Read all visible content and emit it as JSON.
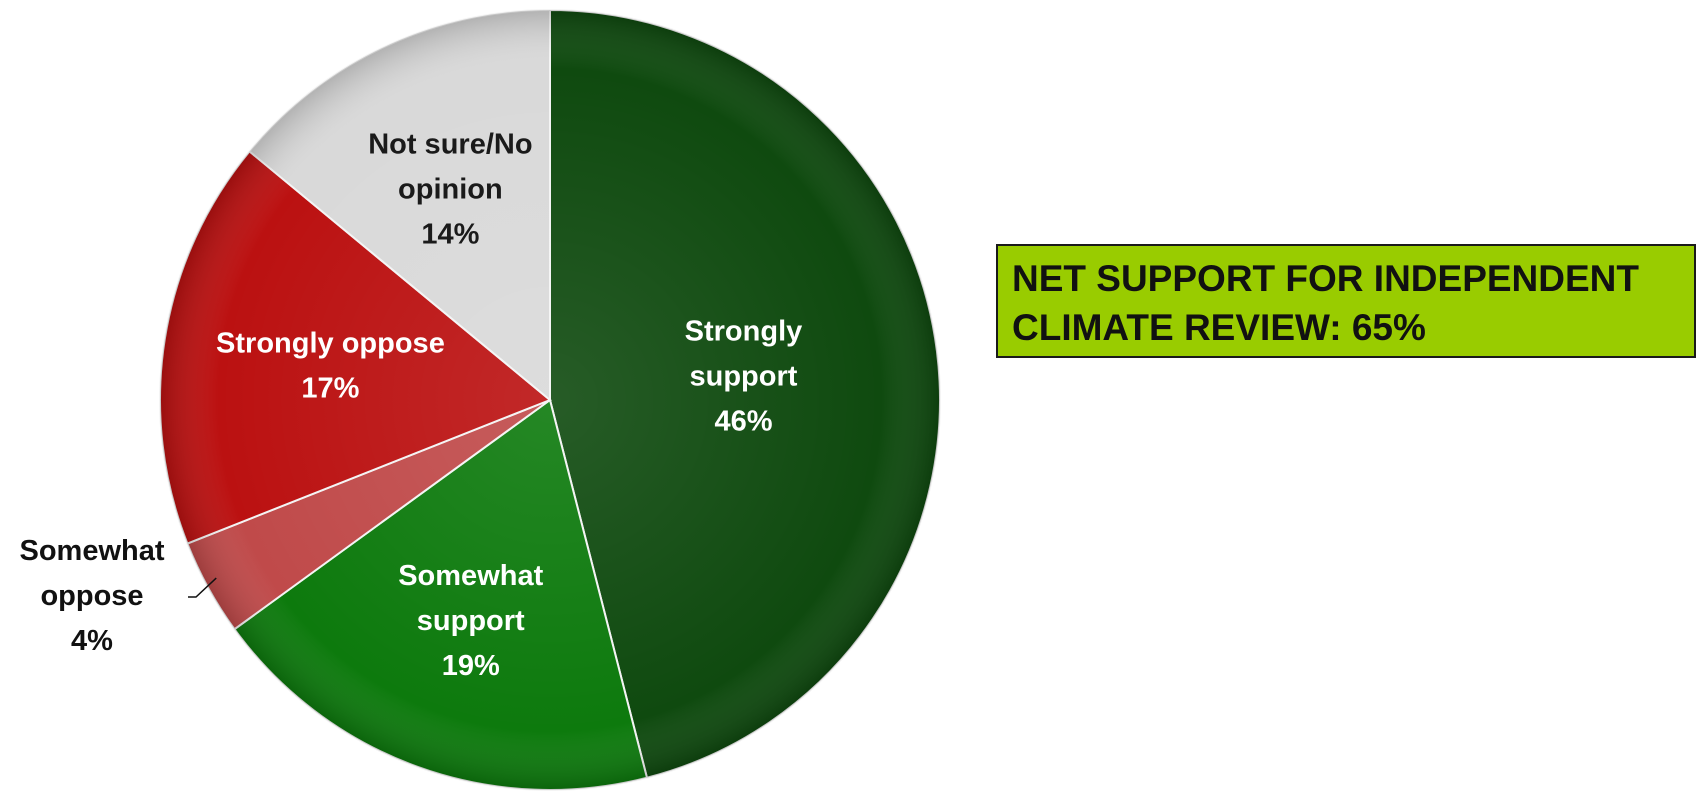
{
  "chart_data": {
    "type": "pie",
    "title": "",
    "slices": [
      {
        "label_lines": [
          "Strongly",
          "support"
        ],
        "value": 46,
        "value_label": "46%",
        "color": "#0f4a0f",
        "text_color": "#ffffff"
      },
      {
        "label_lines": [
          "Somewhat",
          "support"
        ],
        "value": 19,
        "value_label": "19%",
        "color": "#0d7a0d",
        "text_color": "#ffffff"
      },
      {
        "label_lines": [
          "Somewhat",
          "oppose"
        ],
        "value": 4,
        "value_label": "4%",
        "color": "#c04a4a",
        "text_color": "#111111",
        "label_outside": true
      },
      {
        "label_lines": [
          "Strongly oppose"
        ],
        "value": 17,
        "value_label": "17%",
        "color": "#bb1111",
        "text_color": "#ffffff"
      },
      {
        "label_lines": [
          "Not sure/No",
          "opinion"
        ],
        "value": 14,
        "value_label": "14%",
        "color": "#d9d9d9",
        "text_color": "#1a1a1a"
      }
    ],
    "start_angle_deg": 0,
    "direction": "clockwise",
    "legend": "none"
  },
  "callout": {
    "line1": "NET SUPPORT FOR INDEPENDENT",
    "line2": "CLIMATE REVIEW: 65%",
    "background": "#99cc00"
  }
}
